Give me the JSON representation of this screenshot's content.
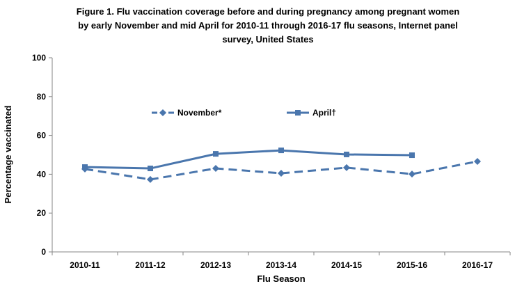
{
  "chart_data": {
    "type": "line",
    "title": "Figure 1. Flu vaccination coverage before and during pregnancy among pregnant women by early November and mid April for 2010-11 through  2016-17 flu seasons,  Internet panel survey, United States",
    "title_lines": [
      "Figure 1. Flu vaccination coverage before and during pregnancy among pregnant women",
      "by early November and mid April for 2010-11 through  2016-17 flu seasons,  Internet panel",
      "survey, United States"
    ],
    "xlabel": "Flu Season",
    "ylabel": "Percentage vaccinated",
    "categories": [
      "2010-11",
      "2011-12",
      "2012-13",
      "2013-14",
      "2014-15",
      "2015-16",
      "2016-17"
    ],
    "ylim": [
      0,
      100
    ],
    "yticks": [
      0,
      20,
      40,
      60,
      80,
      100
    ],
    "grid": false,
    "legend_position": "top-center",
    "series": [
      {
        "name": "November*",
        "style": "dashed",
        "marker": "diamond",
        "color": "#4a76ad",
        "values": [
          42.7,
          37.3,
          43.0,
          40.5,
          43.4,
          40.1,
          46.6
        ]
      },
      {
        "name": "April†",
        "style": "solid",
        "marker": "square",
        "color": "#4a76ad",
        "values": [
          43.7,
          43.0,
          50.5,
          52.3,
          50.2,
          49.8,
          null
        ]
      }
    ]
  }
}
